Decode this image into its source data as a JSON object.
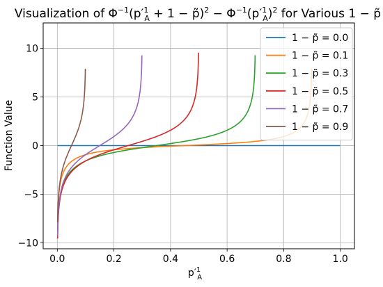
{
  "chart_data": {
    "type": "line",
    "title_parts": {
      "a": "Visualization of Φ",
      "a_sup": "−1",
      "b": "(p′",
      "b_sup": "1",
      "b_sub": "A",
      "c": " + 1 − p̃)",
      "c_sup": "2",
      "d": " − Φ",
      "d_sup": "−1",
      "e": "(p′",
      "e_sup": "1",
      "e_sub": "A",
      "f": ")",
      "f_sup": "2",
      "g": " for Various 1 − p̃"
    },
    "xlabel": {
      "base": "p′",
      "sup": "1",
      "sub": "A"
    },
    "ylabel": "Function Value",
    "xlim": [
      -0.05,
      1.05
    ],
    "ylim": [
      -10.6,
      12.6
    ],
    "xticks": [
      0.0,
      0.2,
      0.4,
      0.6,
      0.8,
      1.0
    ],
    "xtick_labels": [
      "0.0",
      "0.2",
      "0.4",
      "0.6",
      "0.8",
      "1.0"
    ],
    "yticks": [
      -10,
      -5,
      0,
      5,
      10
    ],
    "ytick_labels": [
      "−10",
      "−5",
      "0",
      "5",
      "10"
    ],
    "grid": true,
    "legend_position": "top-right",
    "legend_prefix": "1 − p̃ = ",
    "series": [
      {
        "name": "0.0",
        "shift": 0.0,
        "color": "#1f77b4"
      },
      {
        "name": "0.1",
        "shift": 0.1,
        "color": "#ff7f0e"
      },
      {
        "name": "0.3",
        "shift": 0.3,
        "color": "#2ca02c"
      },
      {
        "name": "0.5",
        "shift": 0.5,
        "color": "#d62728"
      },
      {
        "name": "0.7",
        "shift": 0.7,
        "color": "#9467bd"
      },
      {
        "name": "0.9",
        "shift": 0.9,
        "color": "#8c564b"
      }
    ]
  }
}
